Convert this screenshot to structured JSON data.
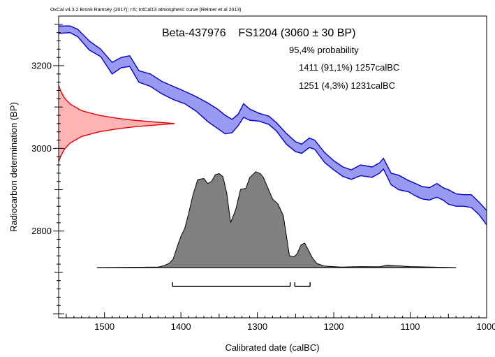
{
  "header": "OxCal v4.3.2 Bronk Ramsey (2017); r:5; IntCal13 atmospheric curve (Reimer et al 2013)",
  "title": "Beta-437976    FS1204 (3060 ± 30 BP)",
  "probability_heading": "95,4% probability",
  "ranges": [
    {
      "label": "1411 (91,1%) 1257calBC",
      "from": 1411,
      "to": 1257,
      "percent": 91.1
    },
    {
      "label": "1251 (4,3%) 1231calBC",
      "from": 1251,
      "to": 1231,
      "percent": 4.3
    }
  ],
  "colors": {
    "curve_fill": "#9a9af2",
    "curve_line": "#0000cc",
    "measurement_fill": "#ffb3b3",
    "measurement_line": "#e60000",
    "posterior_fill": "#808080",
    "axis": "#000000"
  },
  "chart_data": {
    "type": "area",
    "xlabel": "Calibrated date (calBC)",
    "ylabel": "Radiocarbon determination (BP)",
    "xlim": [
      1560,
      1000
    ],
    "ylim": [
      2590,
      3320
    ],
    "x_ticks": [
      1500,
      1400,
      1300,
      1200,
      1100,
      1000
    ],
    "y_ticks": [
      2800,
      3000,
      3200
    ],
    "calibration_curve": {
      "x": [
        1560,
        1545,
        1535,
        1520,
        1505,
        1490,
        1478,
        1467,
        1455,
        1440,
        1425,
        1410,
        1395,
        1380,
        1365,
        1352,
        1342,
        1333,
        1325,
        1318,
        1310,
        1298,
        1285,
        1275,
        1262,
        1250,
        1242,
        1232,
        1225,
        1212,
        1200,
        1188,
        1177,
        1165,
        1150,
        1140,
        1135,
        1125,
        1115,
        1102,
        1093,
        1085,
        1075,
        1065,
        1057,
        1050,
        1040,
        1030,
        1020,
        1010,
        1000
      ],
      "upper": [
        3296,
        3296,
        3288,
        3260,
        3240,
        3208,
        3220,
        3224,
        3188,
        3180,
        3162,
        3150,
        3138,
        3125,
        3110,
        3095,
        3080,
        3070,
        3083,
        3108,
        3095,
        3085,
        3078,
        3062,
        3036,
        3016,
        3010,
        3025,
        3020,
        2990,
        2970,
        2955,
        2948,
        2960,
        2955,
        2965,
        2976,
        2940,
        2935,
        2922,
        2915,
        2908,
        2905,
        2915,
        2905,
        2900,
        2890,
        2888,
        2888,
        2870,
        2850
      ],
      "lower": [
        3278,
        3280,
        3270,
        3238,
        3222,
        3180,
        3195,
        3198,
        3160,
        3150,
        3132,
        3118,
        3108,
        3090,
        3065,
        3048,
        3035,
        3038,
        3055,
        3075,
        3068,
        3066,
        3058,
        3042,
        3010,
        2992,
        2988,
        3002,
        2998,
        2966,
        2948,
        2932,
        2925,
        2934,
        2930,
        2940,
        2950,
        2912,
        2900,
        2895,
        2885,
        2878,
        2875,
        2882,
        2875,
        2865,
        2860,
        2860,
        2857,
        2840,
        2815
      ]
    },
    "measurement": {
      "mean_bp": 3060,
      "sd_bp": 30,
      "curve_points": [
        [
          0.0,
          3152
        ],
        [
          0.02,
          3138
        ],
        [
          0.05,
          3122
        ],
        [
          0.1,
          3107
        ],
        [
          0.2,
          3091
        ],
        [
          0.35,
          3080
        ],
        [
          0.5,
          3073
        ],
        [
          0.65,
          3068
        ],
        [
          0.82,
          3064
        ],
        [
          1.0,
          3060
        ],
        [
          0.82,
          3056
        ],
        [
          0.65,
          3052
        ],
        [
          0.5,
          3047
        ],
        [
          0.35,
          3040
        ],
        [
          0.2,
          3029
        ],
        [
          0.1,
          3013
        ],
        [
          0.05,
          2998
        ],
        [
          0.02,
          2982
        ],
        [
          0.0,
          2968
        ]
      ]
    },
    "posterior": {
      "x": [
        1510,
        1430,
        1422,
        1415,
        1410,
        1405,
        1400,
        1395,
        1390,
        1384,
        1378,
        1370,
        1365,
        1360,
        1355,
        1350,
        1345,
        1340,
        1335,
        1328,
        1322,
        1315,
        1310,
        1302,
        1296,
        1292,
        1286,
        1280,
        1273,
        1266,
        1258,
        1252,
        1248,
        1243,
        1238,
        1232,
        1228,
        1222,
        1212,
        1190,
        1165,
        1140,
        1130,
        1100,
        1040
      ],
      "density": [
        0.0,
        0.005,
        0.02,
        0.045,
        0.09,
        0.21,
        0.32,
        0.4,
        0.55,
        0.75,
        0.9,
        0.91,
        0.86,
        0.88,
        0.95,
        0.96,
        0.93,
        0.76,
        0.46,
        0.6,
        0.8,
        0.81,
        0.92,
        0.98,
        0.96,
        0.92,
        0.81,
        0.7,
        0.65,
        0.53,
        0.12,
        0.11,
        0.14,
        0.23,
        0.25,
        0.16,
        0.1,
        0.04,
        0.015,
        0.005,
        0.01,
        0.008,
        0.025,
        0.01,
        0.0
      ]
    },
    "range_bars": [
      {
        "from": 1411,
        "to": 1257
      },
      {
        "from": 1251,
        "to": 1231
      }
    ]
  }
}
